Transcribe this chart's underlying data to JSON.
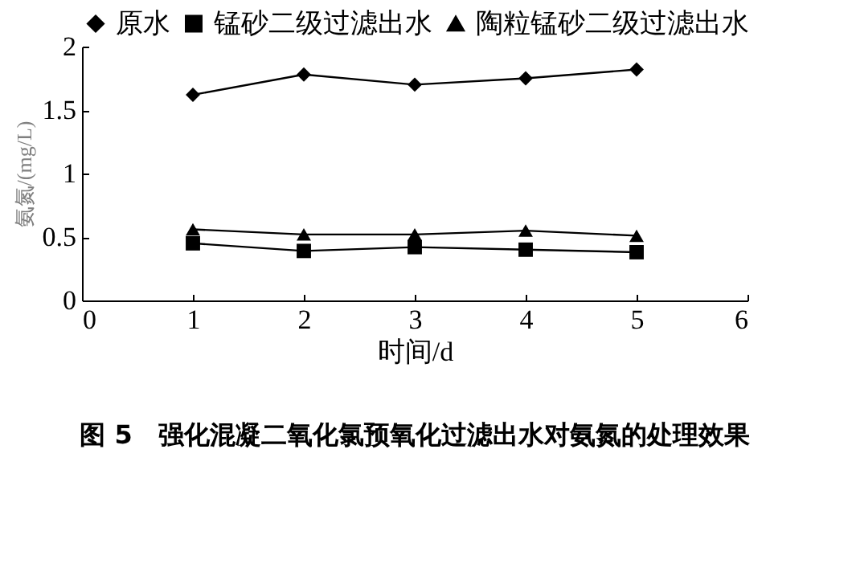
{
  "chart_data": {
    "type": "line",
    "title": "图 5　强化混凝二氧化氯预氧化过滤出水对氨氮的处理效果",
    "xlabel": "时间/d",
    "ylabel": "氨氮/(mg/L)",
    "x": [
      1,
      2,
      3,
      4,
      5
    ],
    "series": [
      {
        "name": "原水",
        "color": "#000000",
        "marker": "diamond",
        "values": [
          1.62,
          1.78,
          1.7,
          1.75,
          1.82
        ]
      },
      {
        "name": "锰砂二级过滤出水",
        "color": "#000000",
        "marker": "square",
        "values": [
          0.45,
          0.39,
          0.42,
          0.4,
          0.38
        ]
      },
      {
        "name": "陶粒锰砂二级过滤出水",
        "color": "#000000",
        "marker": "triangle",
        "values": [
          0.56,
          0.52,
          0.52,
          0.55,
          0.51
        ]
      }
    ],
    "xlim": [
      0,
      6
    ],
    "xticks": [
      0,
      1,
      2,
      3,
      4,
      5,
      6
    ],
    "ylim": [
      0,
      2
    ],
    "yticks": [
      0,
      0.5,
      1,
      1.5,
      2
    ],
    "grid": false,
    "legend": "top",
    "line_style": "solid"
  }
}
